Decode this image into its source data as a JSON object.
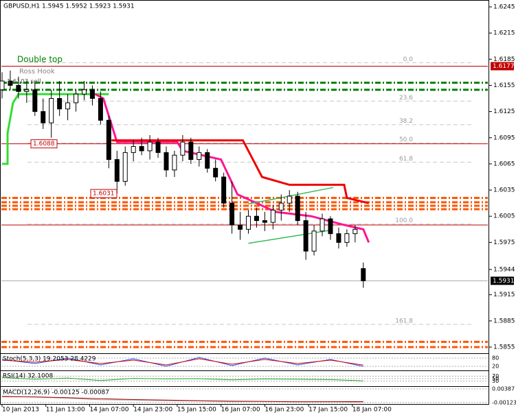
{
  "chart_data": {
    "type": "candlestick",
    "title": "GBPUSD,H1  1.5945 1.5952 1.5923 1.5931",
    "x": [
      0,
      3,
      6,
      9,
      12,
      15,
      18,
      21,
      24,
      27,
      30,
      33,
      36,
      39,
      42,
      45,
      48,
      51,
      54,
      57,
      60,
      63,
      66,
      69,
      72,
      75,
      78,
      81,
      84,
      87,
      90,
      93,
      96,
      99,
      102,
      105,
      108,
      111,
      114,
      117,
      120,
      123,
      126,
      129,
      132
    ],
    "open": [
      1.615,
      1.616,
      1.6155,
      1.6148,
      1.615,
      1.6125,
      1.6112,
      1.614,
      1.6128,
      1.6135,
      1.6145,
      1.615,
      1.614,
      1.6115,
      1.607,
      1.6045,
      1.6078,
      1.6085,
      1.608,
      1.609,
      1.6078,
      1.6058,
      1.6075,
      1.609,
      1.607,
      1.6078,
      1.606,
      1.605,
      1.602,
      1.5995,
      1.599,
      1.6005,
      1.6,
      1.5998,
      1.6012,
      1.602,
      1.6028,
      1.6,
      1.5965,
      1.5988,
      1.6002,
      1.5985,
      1.5975,
      1.5985,
      1.5945
    ],
    "high": [
      1.617,
      1.6172,
      1.6165,
      1.616,
      1.6158,
      1.614,
      1.615,
      1.616,
      1.6145,
      1.615,
      1.616,
      1.6155,
      1.6148,
      1.612,
      1.608,
      1.6085,
      1.6092,
      1.6095,
      1.6098,
      1.6095,
      1.6085,
      1.608,
      1.6098,
      1.6095,
      1.6085,
      1.6082,
      1.607,
      1.6055,
      1.6045,
      1.601,
      1.6012,
      1.6015,
      1.601,
      1.6018,
      1.603,
      1.6035,
      1.6033,
      1.601,
      1.5995,
      1.6008,
      1.6005,
      1.5992,
      1.599,
      1.5995,
      1.5952
    ],
    "low": [
      1.614,
      1.615,
      1.614,
      1.6135,
      1.612,
      1.6105,
      1.6095,
      1.612,
      1.6115,
      1.6125,
      1.6138,
      1.6132,
      1.611,
      1.606,
      1.6031,
      1.604,
      1.6068,
      1.6075,
      1.607,
      1.6072,
      1.605,
      1.605,
      1.6068,
      1.6065,
      1.6062,
      1.6055,
      1.6045,
      1.6015,
      1.5985,
      1.5978,
      1.5985,
      1.5992,
      1.5988,
      1.599,
      1.6,
      1.601,
      1.5995,
      1.5955,
      1.596,
      1.5982,
      1.5978,
      1.5968,
      1.597,
      1.5975,
      1.5923
    ],
    "close": [
      1.616,
      1.6155,
      1.6148,
      1.615,
      1.6125,
      1.6112,
      1.614,
      1.6128,
      1.6135,
      1.6145,
      1.615,
      1.614,
      1.6115,
      1.607,
      1.6045,
      1.6078,
      1.6085,
      1.608,
      1.609,
      1.6078,
      1.6058,
      1.6075,
      1.609,
      1.607,
      1.6078,
      1.606,
      1.605,
      1.602,
      1.5995,
      1.599,
      1.6005,
      1.6,
      1.5998,
      1.6012,
      1.602,
      1.6028,
      1.6,
      1.5965,
      1.5988,
      1.6002,
      1.5985,
      1.5975,
      1.5985,
      1.599,
      1.5931
    ],
    "color": "#000000",
    "xlim": [
      0,
      178
    ],
    "xticks": [
      {
        "value": 0,
        "label": "10 Jan 2013"
      },
      {
        "value": 16,
        "label": "11 Jan 13:00"
      },
      {
        "value": 32,
        "label": "14 Jan 07:00"
      },
      {
        "value": 48,
        "label": "14 Jan 23:00"
      },
      {
        "value": 64,
        "label": "15 Jan 15:00"
      },
      {
        "value": 80,
        "label": "16 Jan 07:00"
      },
      {
        "value": 96,
        "label": "16 Jan 23:00"
      },
      {
        "value": 112,
        "label": "17 Jan 15:00"
      },
      {
        "value": 128,
        "label": "18 Jan 07:00"
      }
    ],
    "ylim": [
      1.5855,
      1.6245
    ],
    "yticks": [
      1.6245,
      1.6215,
      1.6185,
      1.6155,
      1.6125,
      1.6095,
      1.6065,
      1.6035,
      1.6005,
      1.5975,
      1.5944,
      1.5915,
      1.5885,
      1.5855
    ],
    "overlays": [
      {
        "color": "#33dd33",
        "x": [
          0,
          2,
          2,
          4,
          6,
          39
        ],
        "values": [
          1.6065,
          1.6065,
          1.61,
          1.6135,
          1.6145,
          1.6145
        ]
      },
      {
        "color": "#ff1493",
        "x": [
          34,
          37,
          42,
          64,
          66,
          80,
          86,
          100,
          113,
          125,
          132,
          134
        ],
        "values": [
          1.6145,
          1.614,
          1.609,
          1.609,
          1.608,
          1.607,
          1.603,
          1.601,
          1.6005,
          1.5995,
          1.599,
          1.5975
        ]
      },
      {
        "color": "#ee0000",
        "x": [
          40,
          88,
          95,
          105,
          125,
          126,
          134
        ],
        "values": [
          1.6092,
          1.6092,
          1.605,
          1.6041,
          1.6041,
          1.6026,
          1.602
        ]
      },
      {
        "color": "#33bb55",
        "x": [
          90,
          120
        ],
        "values": [
          1.5974,
          1.5989
        ]
      },
      {
        "color": "#33bb55",
        "x": [
          90,
          121
        ],
        "values": [
          1.6019,
          1.6038
        ]
      }
    ],
    "levels": [
      {
        "value": 1.6177,
        "color": "#c00000"
      },
      {
        "value": 1.6088,
        "color": "#c00000"
      },
      {
        "value": 1.5995,
        "color": "#c00000"
      },
      {
        "value": 1.5931,
        "color": "#aaaaaa"
      }
    ],
    "fibo": {
      "values": [
        1.6181,
        1.6137,
        1.611,
        1.6089,
        1.6067,
        1.5996,
        1.5881
      ],
      "labels": [
        "0.0",
        "23.6",
        "38.2",
        "50.0",
        "61.8",
        "100.0",
        "161.8"
      ]
    },
    "bands": [
      {
        "color": "#008000",
        "values": [
          1.6158,
          1.615
        ]
      },
      {
        "color": "#ff5500",
        "values": [
          1.6026,
          1.6021,
          1.6017,
          1.6013
        ]
      },
      {
        "color": "#ff5500",
        "values": [
          1.5861,
          1.5855
        ]
      }
    ],
    "price_labels": [
      {
        "value": 1.6177,
        "label": "1.6177",
        "color": "#c00000"
      },
      {
        "value": 1.5931,
        "label": "1.5931",
        "color": "#000000"
      }
    ],
    "markers": [
      {
        "value": 1.6088,
        "label": "1.6088"
      },
      {
        "value": 1.6031,
        "label": "1.6031"
      }
    ],
    "annotations": [
      {
        "text": "Double top",
        "color": "#008000"
      },
      {
        "text": "Ross Hook",
        "color": "#888888"
      },
      {
        "text": "1.6103 sell",
        "color": "#555555"
      }
    ],
    "indicators": [
      {
        "label": "Stoch(5,3,3) 19.2053 28.4229",
        "ylim": [
          0,
          100
        ],
        "yticks": [
          80,
          20
        ],
        "x": [
          0,
          12,
          24,
          36,
          48,
          60,
          72,
          84,
          96,
          108,
          120,
          132
        ],
        "series": [
          {
            "color": "#1e50ff",
            "values": [
              70,
              40,
              80,
              30,
              75,
              20,
              85,
              25,
              80,
              30,
              70,
              19.2053
            ]
          },
          {
            "color": "#dd0000",
            "values": [
              65,
              50,
              70,
              40,
              65,
              30,
              75,
              35,
              70,
              40,
              65,
              28.4229
            ]
          }
        ]
      },
      {
        "label": "RSI(14) 32.1008",
        "ylim": [
          0,
          100
        ],
        "yticks": [
          70,
          50,
          30
        ],
        "x": [
          0,
          12,
          24,
          36,
          48,
          60,
          72,
          84,
          96,
          108,
          120,
          132
        ],
        "series": [
          {
            "color": "#22aa22",
            "values": [
              60,
              45,
              55,
              35,
              52,
              48,
              50,
              40,
              48,
              45,
              42,
              32.1008
            ]
          }
        ]
      },
      {
        "label": "MACD(12,26,9) -0.00125 -0.00087",
        "ylim": [
          -0.00125,
          0.00387
        ],
        "yticks": [
          0.00387,
          -0.00123
        ],
        "x": [
          0,
          12,
          24,
          36,
          48,
          60,
          72,
          84,
          96,
          108,
          120,
          132
        ],
        "series": [
          {
            "color": "#aaaaaa",
            "values": [
              0.0012,
              0.0008,
              0.0004,
              -0.0002,
              -0.0003,
              -0.0005,
              -0.0006,
              -0.0009,
              -0.0008,
              -0.001,
              -0.0009,
              -0.00125
            ]
          },
          {
            "color": "#aa0000",
            "values": [
              0.001,
              0.0009,
              0.0006,
              0.0002,
              -0.0001,
              -0.0003,
              -0.0005,
              -0.0007,
              -0.0008,
              -0.0009,
              -0.0009,
              -0.00087
            ]
          }
        ]
      }
    ]
  }
}
